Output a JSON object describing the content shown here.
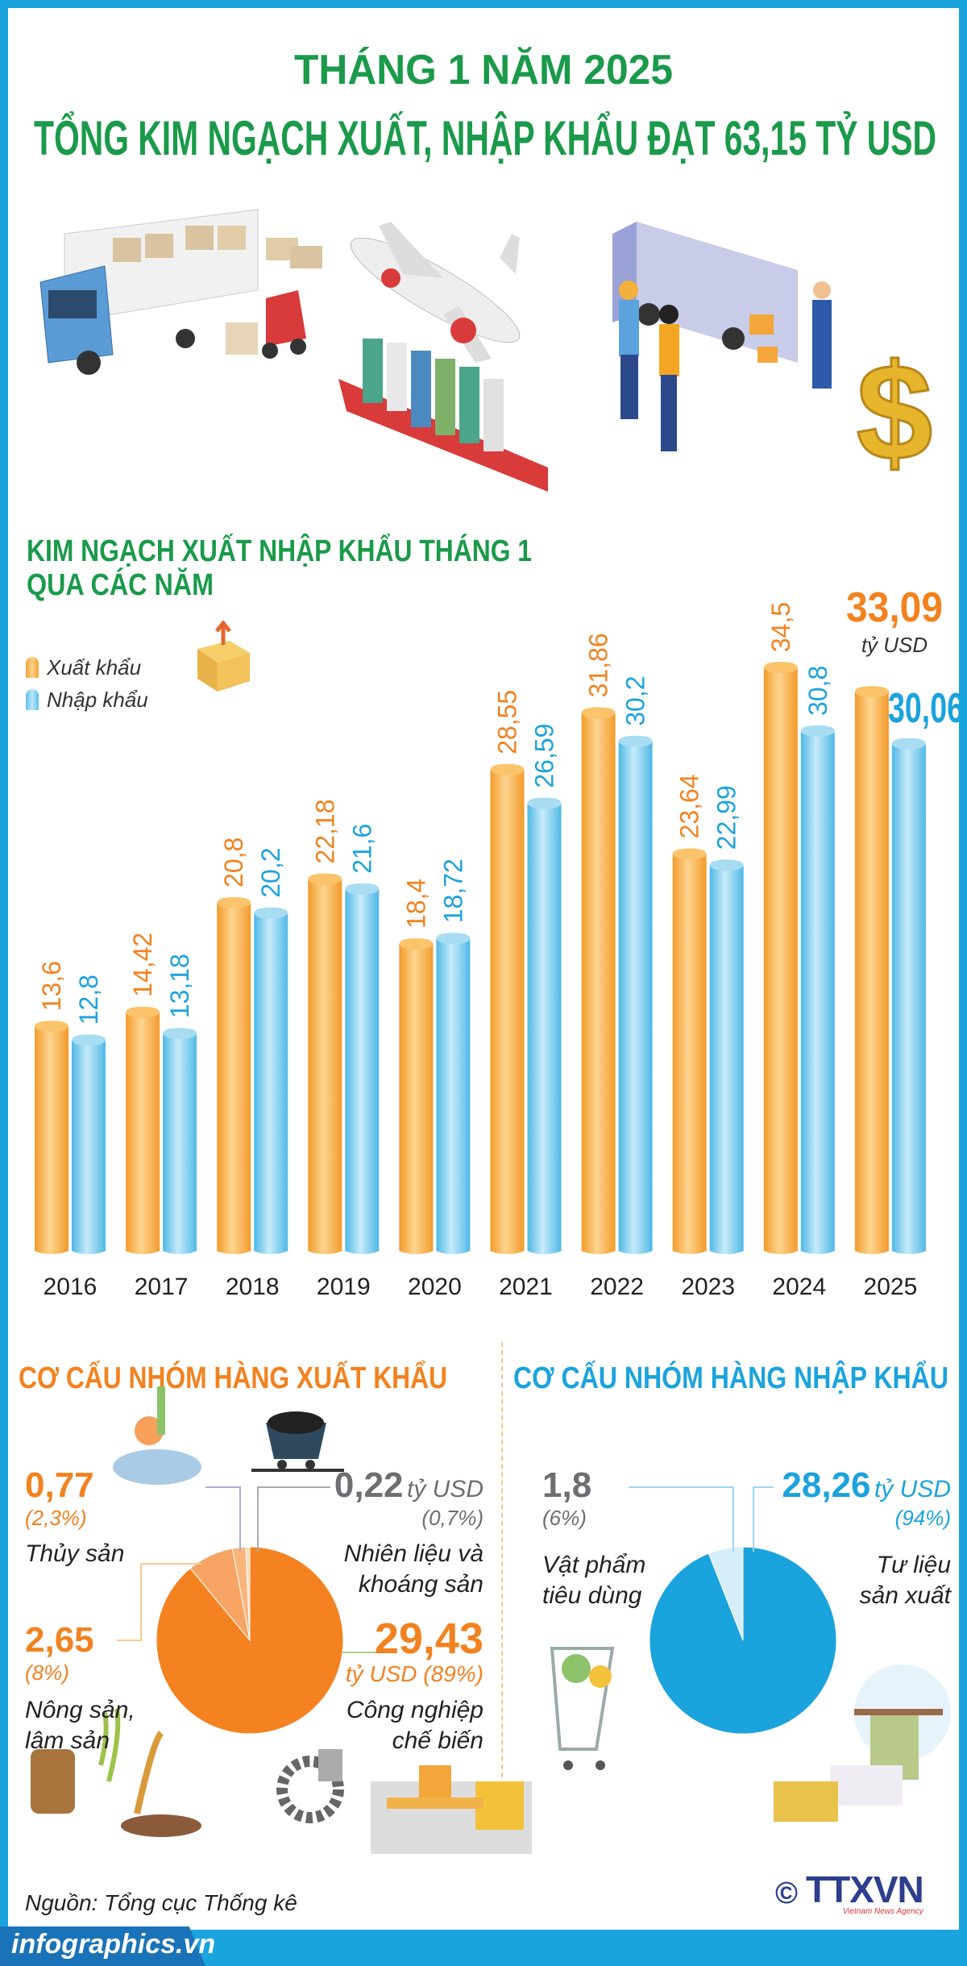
{
  "header": {
    "line1": "THÁNG 1 NĂM 2025",
    "line2": "TỔNG KIM NGẠCH XUẤT, NHẬP KHẨU ĐẠT 63,15 TỶ USD"
  },
  "colors": {
    "green": "#1a9a4a",
    "orange": "#f2821f",
    "blue": "#1ba3dd",
    "grey": "#6d6e71"
  },
  "illustration": {
    "dollar": "$"
  },
  "chart_data": {
    "type": "bar",
    "title": "KIM NGẠCH XUẤT NHẬP KHẨU THÁNG 1 QUA CÁC NĂM",
    "title_lines": [
      "KIM NGẠCH XUẤT NHẬP KHẨU THÁNG 1",
      "QUA CÁC NĂM"
    ],
    "categories": [
      "2016",
      "2017",
      "2018",
      "2019",
      "2020",
      "2021",
      "2022",
      "2023",
      "2024",
      "2025"
    ],
    "series": [
      {
        "name": "Xuất khẩu",
        "color": "#f7a234",
        "values": [
          13.6,
          14.42,
          20.8,
          22.18,
          18.4,
          28.55,
          31.86,
          23.64,
          34.5,
          33.09
        ],
        "labels": [
          "13,6",
          "14,42",
          "20,8",
          "22,18",
          "18,4",
          "28,55",
          "31,86",
          "23,64",
          "34,5",
          "33,09"
        ]
      },
      {
        "name": "Nhập khẩu",
        "color": "#5cc1ec",
        "values": [
          12.8,
          13.18,
          20.2,
          21.6,
          18.72,
          26.59,
          30.2,
          22.99,
          30.8,
          30.06
        ],
        "labels": [
          "12,8",
          "13,18",
          "20,2",
          "21,6",
          "18,72",
          "26,59",
          "30,2",
          "22,99",
          "30,8",
          "30,06"
        ]
      }
    ],
    "unit": "tỷ USD",
    "legend": "top-left",
    "grid": false
  },
  "export_structure": {
    "heading": "CƠ CẤU NHÓM HÀNG XUẤT KHẨU",
    "slices": [
      {
        "name_lines": [
          "Nhiên liệu và",
          "khoáng sản"
        ],
        "value": "0,22",
        "unit": "tỷ USD",
        "pct": "(0,7%)",
        "share": 0.7,
        "color": "#fcd8b6"
      },
      {
        "name_lines": [
          "Thủy sản"
        ],
        "value": "0,77",
        "pct": "(2,3%)",
        "share": 2.3,
        "color": "#f9b57c"
      },
      {
        "name_lines": [
          "Nông sản,",
          "lâm sản"
        ],
        "value": "2,65",
        "pct": "(8%)",
        "share": 8,
        "color": "#f6a363"
      },
      {
        "name_lines": [
          "Công nghiệp",
          "chế biến"
        ],
        "value": "29,43",
        "unit_pct": "tỷ USD (89%)",
        "share": 89,
        "color": "#f58220"
      }
    ]
  },
  "import_structure": {
    "heading": "CƠ CẤU NHÓM HÀNG NHẬP KHẨU",
    "slices": [
      {
        "name_lines": [
          "Vật phẩm",
          "tiêu dùng"
        ],
        "value": "1,8",
        "pct": "(6%)",
        "share": 6,
        "color": "#d6eefa"
      },
      {
        "name_lines": [
          "Tư liệu",
          "sản xuất"
        ],
        "value": "28,26",
        "unit": "tỷ USD",
        "pct": "(94%)",
        "share": 94,
        "color": "#1ba3dd"
      }
    ]
  },
  "footer": {
    "source": "Nguồn: Tổng cục Thống kê",
    "site": "infographics.vn",
    "copyright": "©",
    "logo": "TTXVN",
    "logo_sub": "Vietnam News Agency"
  }
}
